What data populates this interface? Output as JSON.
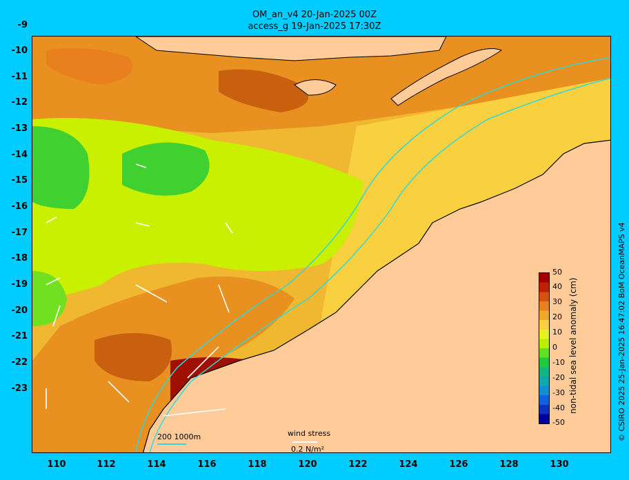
{
  "title": {
    "line1": "OM_an_v4  20-Jan-2025 00Z",
    "line2": "access_g 19-Jan-2025 17:30Z"
  },
  "axes": {
    "y_ticks": [
      "-9",
      "-10",
      "-11",
      "-12",
      "-13",
      "-14",
      "-15",
      "-16",
      "-17",
      "-18",
      "-19",
      "-20",
      "-21",
      "-22",
      "-23"
    ],
    "x_ticks": [
      "110",
      "112",
      "114",
      "116",
      "118",
      "120",
      "122",
      "124",
      "126",
      "128",
      "130"
    ]
  },
  "colorbar": {
    "label": "non-tidal sea level anomaly (cm)",
    "ticks": [
      "50",
      "40",
      "30",
      "20",
      "10",
      "0",
      "-10",
      "-20",
      "-30",
      "-40",
      "-50"
    ],
    "colors": [
      "#a00000",
      "#c02000",
      "#d85010",
      "#e88020",
      "#f0a828",
      "#f8d040",
      "#e8f020",
      "#b8f000",
      "#60e020",
      "#20c840",
      "#10b880",
      "#10a8b0",
      "#1090d0",
      "#1060e0",
      "#1030c0",
      "#0000a0"
    ]
  },
  "legend": {
    "isobaths": "200  1000m",
    "wind_title": "wind stress",
    "wind_scale": "0.2 N/m²"
  },
  "credit": "© CSIRO 2025  25-Jan-2025 16:47:02 BoM OceanMAPS v4"
}
